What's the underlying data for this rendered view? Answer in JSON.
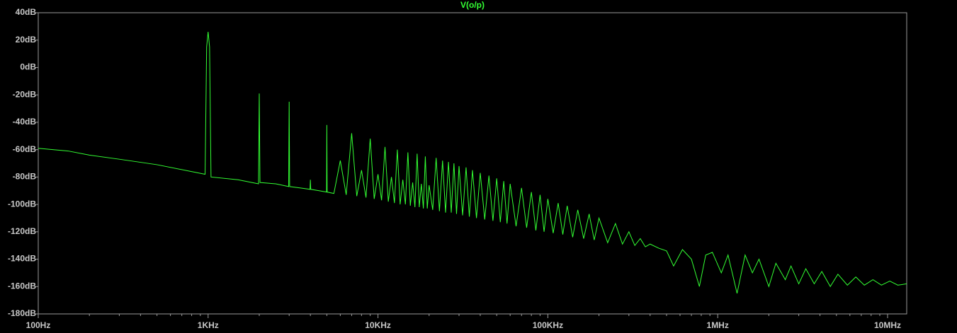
{
  "chart_data": {
    "type": "line",
    "title": "V(o/p)",
    "xscale": "log",
    "xlim": [
      100,
      12960000
    ],
    "ylim": [
      -180,
      40
    ],
    "xticks": [
      {
        "value": 100,
        "label": "100Hz"
      },
      {
        "value": 1000,
        "label": "1KHz"
      },
      {
        "value": 10000,
        "label": "10KHz"
      },
      {
        "value": 100000,
        "label": "100KHz"
      },
      {
        "value": 1000000,
        "label": "1MHz"
      },
      {
        "value": 10000000,
        "label": "10MHz"
      }
    ],
    "xminor": [
      200,
      300,
      400,
      500,
      600,
      700,
      800,
      900,
      2000,
      3000,
      4000,
      5000,
      6000,
      7000,
      8000,
      9000,
      20000,
      30000,
      40000,
      50000,
      60000,
      70000,
      80000,
      90000,
      200000,
      300000,
      400000,
      500000,
      600000,
      700000,
      800000,
      900000,
      2000000,
      3000000,
      4000000,
      5000000,
      6000000,
      7000000,
      8000000,
      9000000
    ],
    "yticks": [
      {
        "value": 40,
        "label": "40dB"
      },
      {
        "value": 20,
        "label": "20dB"
      },
      {
        "value": 0,
        "label": "0dB"
      },
      {
        "value": -20,
        "label": "-20dB"
      },
      {
        "value": -40,
        "label": "-40dB"
      },
      {
        "value": -60,
        "label": "-60dB"
      },
      {
        "value": -80,
        "label": "-80dB"
      },
      {
        "value": -100,
        "label": "-100dB"
      },
      {
        "value": -120,
        "label": "-120dB"
      },
      {
        "value": -140,
        "label": "-140dB"
      },
      {
        "value": -160,
        "label": "-160dB"
      },
      {
        "value": -180,
        "label": "-180dB"
      }
    ],
    "series": [
      {
        "name": "V(o/p)",
        "color": "#33ff33",
        "x": [
          100,
          150,
          200,
          300,
          500,
          960,
          980,
          1000,
          1020,
          1040,
          1500,
          1980,
          2000,
          2020,
          2500,
          2980,
          3000,
          3020,
          3500,
          3980,
          4000,
          4020,
          4500,
          4980,
          5000,
          5020,
          5500,
          6000,
          6500,
          7000,
          7500,
          8000,
          8500,
          9000,
          9500,
          10000,
          10500,
          11000,
          11500,
          12000,
          12500,
          13000,
          13500,
          14000,
          14500,
          15000,
          15500,
          16000,
          16500,
          17000,
          17500,
          18000,
          18500,
          19000,
          19500,
          20000,
          21000,
          22000,
          23000,
          24000,
          25000,
          26000,
          27000,
          28000,
          29000,
          30000,
          31500,
          33000,
          34500,
          36000,
          38000,
          40000,
          42500,
          45000,
          47500,
          50000,
          52500,
          55000,
          57500,
          60000,
          65000,
          70000,
          75000,
          80000,
          85000,
          90000,
          95000,
          100000,
          107500,
          115000,
          122500,
          130000,
          140000,
          150000,
          162500,
          175000,
          187500,
          200000,
          225000,
          250000,
          275000,
          300000,
          325000,
          350000,
          375000,
          400000,
          450000,
          500000,
          550000,
          620000,
          700000,
          780000,
          850000,
          930000,
          1050000,
          1150000,
          1300000,
          1450000,
          1600000,
          1750000,
          2000000,
          2200000,
          2500000,
          2700000,
          3000000,
          3300000,
          3700000,
          4100000,
          4600000,
          5100000,
          5800000,
          6500000,
          7300000,
          8200000,
          9200000,
          10300000,
          11500000,
          12960000
        ],
        "values": [
          -59,
          -61,
          -64,
          -67,
          -71,
          -78,
          15,
          26,
          15,
          -80,
          -82,
          -85,
          -19,
          -84,
          -85,
          -87,
          -25,
          -87,
          -88,
          -89,
          -82,
          -89,
          -90,
          -91,
          -42,
          -91,
          -92,
          -68,
          -93,
          -48,
          -94,
          -75,
          -95,
          -52,
          -96,
          -78,
          -97,
          -58,
          -98,
          -80,
          -99,
          -60,
          -100,
          -82,
          -100,
          -62,
          -101,
          -84,
          -102,
          -63,
          -102,
          -85,
          -103,
          -65,
          -103,
          -86,
          -104,
          -66,
          -105,
          -68,
          -106,
          -69,
          -106,
          -70,
          -107,
          -72,
          -108,
          -73,
          -109,
          -75,
          -110,
          -77,
          -111,
          -79,
          -112,
          -81,
          -113,
          -83,
          -114,
          -85,
          -116,
          -88,
          -117,
          -91,
          -119,
          -93,
          -120,
          -96,
          -121,
          -99,
          -122,
          -101,
          -124,
          -104,
          -125,
          -107,
          -126,
          -110,
          -128,
          -114,
          -129,
          -120,
          -130,
          -125,
          -131,
          -129,
          -132,
          -134,
          -145,
          -133,
          -140,
          -160,
          -137,
          -135,
          -150,
          -137,
          -165,
          -137,
          -150,
          -140,
          -160,
          -143,
          -155,
          -145,
          -158,
          -147,
          -158,
          -149,
          -160,
          -151,
          -159,
          -153,
          -159,
          -155,
          -159,
          -156,
          -159,
          -158
        ]
      }
    ]
  }
}
